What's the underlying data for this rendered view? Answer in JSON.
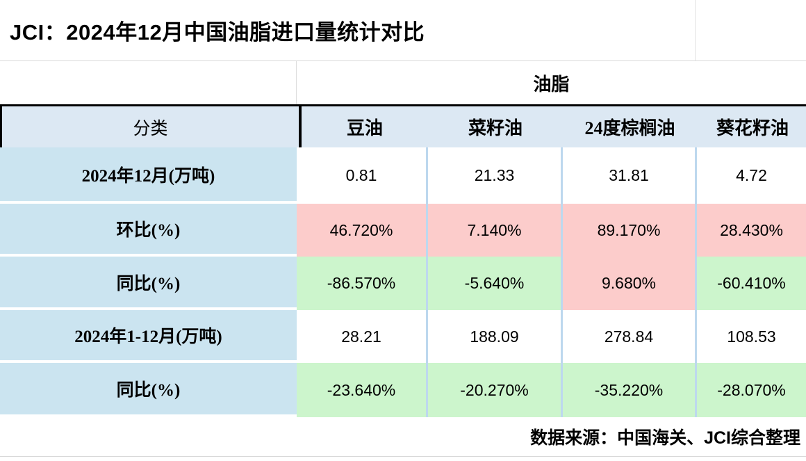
{
  "title": "JCI：2024年12月中国油脂进口量统计对比",
  "table": {
    "group_header": "油脂",
    "category_header": "分类",
    "columns": [
      "豆油",
      "菜籽油",
      "24度棕榈油",
      "葵花籽油"
    ],
    "rows": [
      {
        "label": "2024年12月(万吨)",
        "values": [
          "0.81",
          "21.33",
          "31.81",
          "4.72"
        ],
        "cell_classes": [
          "c-white",
          "c-white",
          "c-white",
          "c-white"
        ]
      },
      {
        "label": "环比(%)",
        "values": [
          "46.720%",
          "7.140%",
          "89.170%",
          "28.430%"
        ],
        "cell_classes": [
          "c-pink",
          "c-pink",
          "c-pink",
          "c-pink"
        ]
      },
      {
        "label": "同比(%)",
        "values": [
          "-86.570%",
          "-5.640%",
          "9.680%",
          "-60.410%"
        ],
        "cell_classes": [
          "c-green",
          "c-green",
          "c-pink",
          "c-green"
        ]
      },
      {
        "label": "2024年1-12月(万吨)",
        "values": [
          "28.21",
          "188.09",
          "278.84",
          "108.53"
        ],
        "cell_classes": [
          "c-white",
          "c-white",
          "c-white",
          "c-white"
        ]
      },
      {
        "label": "同比(%)",
        "values": [
          "-23.640%",
          "-20.270%",
          "-35.220%",
          "-28.070%"
        ],
        "cell_classes": [
          "c-green",
          "c-green",
          "c-green",
          "c-green"
        ]
      }
    ]
  },
  "footer": {
    "source_text": "数据来源：中国海关、JCI综合整理"
  },
  "colors": {
    "increase_bg": "#fccccb",
    "decrease_bg": "#ccf5cc",
    "label_column_bg": "#cbe4f0",
    "header_row_bg": "#dce8f3",
    "column_separator": "#bdd8ee",
    "grid_line": "#d9d9d9",
    "header_border": "#000000"
  },
  "chart_data": {
    "type": "table",
    "title": "JCI：2024年12月中国油脂进口量统计对比",
    "group_header": "油脂",
    "columns": [
      "豆油",
      "菜籽油",
      "24度棕榈油",
      "葵花籽油"
    ],
    "rows": [
      {
        "label": "2024年12月(万吨)",
        "values": [
          0.81,
          21.33,
          31.81,
          4.72
        ]
      },
      {
        "label": "环比(%)",
        "values": [
          46.72,
          7.14,
          89.17,
          28.43
        ]
      },
      {
        "label": "同比(%)",
        "values": [
          -86.57,
          -5.64,
          9.68,
          -60.41
        ]
      },
      {
        "label": "2024年1-12月(万吨)",
        "values": [
          28.21,
          188.09,
          278.84,
          108.53
        ]
      },
      {
        "label": "同比(%)",
        "values": [
          -23.64,
          -20.27,
          -35.22,
          -28.07
        ]
      }
    ],
    "source": "数据来源：中国海关、JCI综合整理",
    "legend_semantics": "pink = increase, green = decrease"
  }
}
